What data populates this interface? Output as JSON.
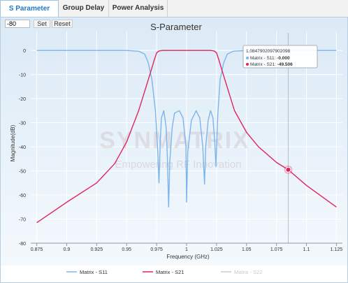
{
  "tabs": [
    {
      "label": "S Parameter",
      "active": true
    },
    {
      "label": "Group Delay",
      "active": false
    },
    {
      "label": "Power Analysis",
      "active": false
    }
  ],
  "toolbar": {
    "y_value": "-80",
    "set_label": "Set",
    "reset_label": "Reset"
  },
  "watermark": {
    "brand": "SYNMATRIX",
    "tagline": "Empowering RF Innovation"
  },
  "tooltip": {
    "x_value": "1.0847902097902098",
    "rows": [
      {
        "series": "Matrix - S11",
        "value": "-0.000",
        "color": "#7cb5ec"
      },
      {
        "series": "Matrix - S21",
        "value": "-49.506",
        "color": "#e0245e"
      }
    ]
  },
  "legend": [
    {
      "name": "Matrix - S11",
      "color": "#7cb5ec",
      "visible": true
    },
    {
      "name": "Matrix - S21",
      "color": "#e0245e",
      "visible": true
    },
    {
      "name": "Matrix - S22",
      "color": "#cccccc",
      "visible": false
    }
  ],
  "chart_data": {
    "type": "line",
    "title": "S-Parameter",
    "xlabel": "Frequency (GHz)",
    "ylabel": "Magnitude(dB)",
    "xlim": [
      0.87,
      1.13
    ],
    "ylim": [
      -80,
      5
    ],
    "x_ticks": [
      "0.875",
      "0.9",
      "0.925",
      "0.95",
      "0.975",
      "1",
      "1.025",
      "1.05",
      "1.075",
      "1.1",
      "1.125"
    ],
    "y_ticks": [
      "0",
      "-10",
      "-20",
      "-30",
      "-40",
      "-50",
      "-60",
      "-70",
      "-80"
    ],
    "grid": true,
    "crosshair_x": 1.0848,
    "highlight": {
      "x": 1.0848,
      "y": -49.506
    },
    "series": [
      {
        "name": "Matrix - S11",
        "color": "#7cb5ec",
        "points": [
          [
            0.875,
            0
          ],
          [
            0.95,
            0
          ],
          [
            0.96,
            -0.3
          ],
          [
            0.965,
            -1.5
          ],
          [
            0.968,
            -5
          ],
          [
            0.971,
            -12
          ],
          [
            0.974,
            -25
          ],
          [
            0.976,
            -42
          ],
          [
            0.977,
            -55
          ],
          [
            0.978,
            -38
          ],
          [
            0.979,
            -28
          ],
          [
            0.981,
            -25
          ],
          [
            0.983,
            -32
          ],
          [
            0.984,
            -45
          ],
          [
            0.985,
            -65
          ],
          [
            0.986,
            -46
          ],
          [
            0.988,
            -32
          ],
          [
            0.99,
            -26
          ],
          [
            0.994,
            -25
          ],
          [
            0.997,
            -28
          ],
          [
            0.9995,
            -40
          ],
          [
            1.0,
            -63
          ],
          [
            1.001,
            -42
          ],
          [
            1.004,
            -29
          ],
          [
            1.008,
            -25
          ],
          [
            1.011,
            -28
          ],
          [
            1.0135,
            -40
          ],
          [
            1.015,
            -55.5
          ],
          [
            1.016,
            -40
          ],
          [
            1.018,
            -29
          ],
          [
            1.02,
            -25
          ],
          [
            1.022,
            -28
          ],
          [
            1.0235,
            -38
          ],
          [
            1.0245,
            -48
          ],
          [
            1.026,
            -27
          ],
          [
            1.028,
            -12
          ],
          [
            1.031,
            -5
          ],
          [
            1.034,
            -1.5
          ],
          [
            1.039,
            -0.3
          ],
          [
            1.05,
            0
          ],
          [
            1.085,
            0
          ],
          [
            1.125,
            0
          ]
        ]
      },
      {
        "name": "Matrix - S21",
        "color": "#e0245e",
        "points": [
          [
            0.875,
            -71.5
          ],
          [
            0.9,
            -63
          ],
          [
            0.925,
            -55
          ],
          [
            0.94,
            -47
          ],
          [
            0.95,
            -38
          ],
          [
            0.96,
            -25
          ],
          [
            0.965,
            -17
          ],
          [
            0.97,
            -9
          ],
          [
            0.973,
            -4
          ],
          [
            0.975,
            -1
          ],
          [
            0.977,
            -0.2
          ],
          [
            0.98,
            0
          ],
          [
            1.02,
            0
          ],
          [
            1.023,
            -0.2
          ],
          [
            1.025,
            -1
          ],
          [
            1.027,
            -4
          ],
          [
            1.03,
            -9
          ],
          [
            1.035,
            -17
          ],
          [
            1.04,
            -25
          ],
          [
            1.05,
            -34
          ],
          [
            1.06,
            -40
          ],
          [
            1.075,
            -46.5
          ],
          [
            1.0848,
            -49.506
          ],
          [
            1.1,
            -56
          ],
          [
            1.125,
            -65
          ]
        ]
      }
    ]
  }
}
